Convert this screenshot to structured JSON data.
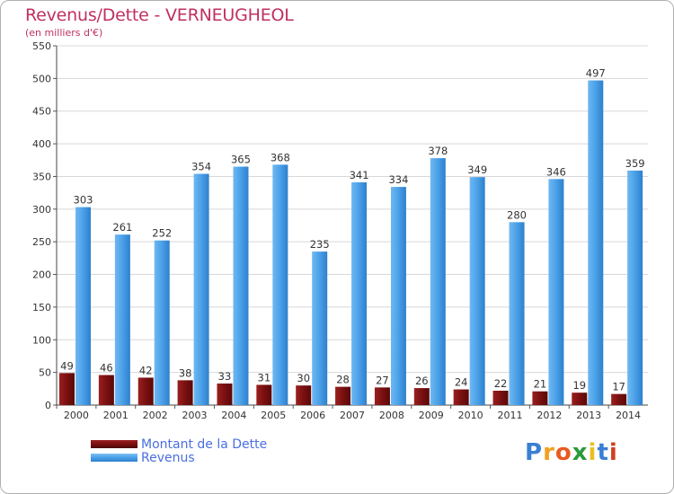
{
  "title": "Revenus/Dette - VERNEUGHEOL",
  "subtitle": "(en milliers d'€)",
  "colors": {
    "debt": "#7a1010",
    "revenue": "#4aa0e8",
    "title": "#c03060",
    "legend_text": "#4a6fe0",
    "grid": "#d8d8d8"
  },
  "chart_data": {
    "type": "bar",
    "title": "Revenus/Dette - VERNEUGHEOL",
    "ylabel": "(en milliers d'€)",
    "xlabel": "",
    "ylim": [
      0,
      550
    ],
    "yticks": [
      0,
      50,
      100,
      150,
      200,
      250,
      300,
      350,
      400,
      450,
      500,
      550
    ],
    "grid": true,
    "categories": [
      "2000",
      "2001",
      "2002",
      "2003",
      "2004",
      "2005",
      "2006",
      "2007",
      "2008",
      "2009",
      "2010",
      "2011",
      "2012",
      "2013",
      "2014"
    ],
    "series": [
      {
        "name": "Montant de la Dette",
        "values": [
          49,
          46,
          42,
          38,
          33,
          31,
          30,
          28,
          27,
          26,
          24,
          22,
          21,
          19,
          17
        ]
      },
      {
        "name": "Revenus",
        "values": [
          303,
          261,
          252,
          354,
          365,
          368,
          235,
          341,
          334,
          378,
          349,
          280,
          346,
          497,
          359
        ]
      }
    ],
    "legend": "bottom-left"
  },
  "legend": {
    "debt_label": "Montant de la Dette",
    "revenue_label": "Revenus"
  },
  "logo": {
    "letters": [
      "P",
      "r",
      "o",
      "x",
      "i",
      "t",
      "i"
    ],
    "colors": [
      "#3b7fd4",
      "#f0a020",
      "#e85a20",
      "#2a9a3a",
      "#e8c020",
      "#3b7fd4",
      "#d04020"
    ]
  }
}
